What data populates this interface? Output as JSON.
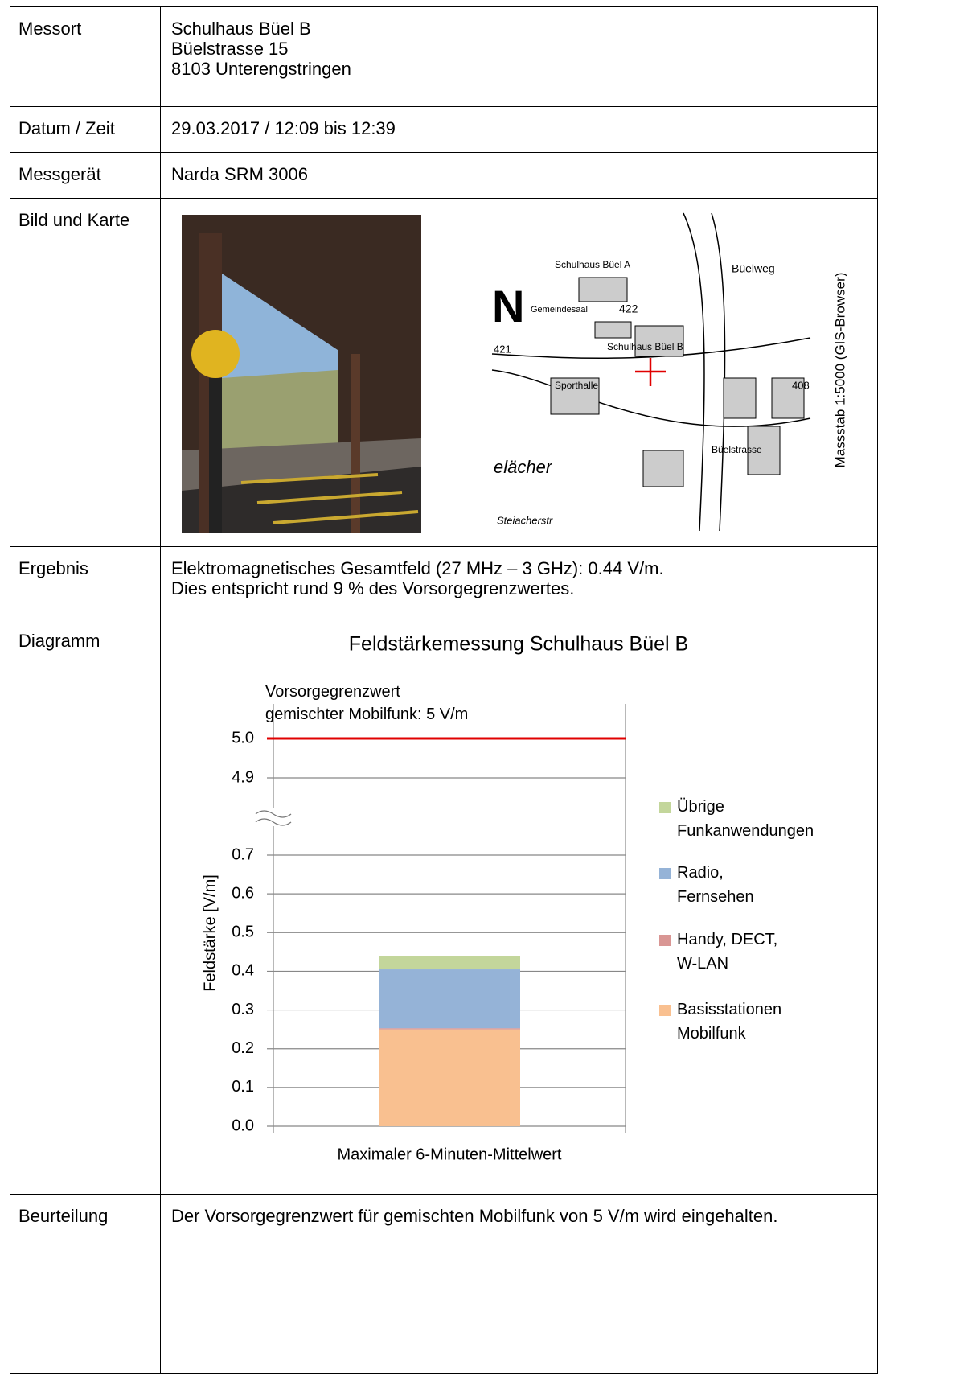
{
  "table": {
    "rows": [
      {
        "label": "Messort",
        "lines": [
          "Schulhaus Büel B",
          "Büelstrasse 15",
          "8103 Unterengstringen"
        ]
      },
      {
        "label": "Datum / Zeit",
        "lines": [
          "29.03.2017 / 12:09 bis 12:39"
        ]
      },
      {
        "label": "Messgerät",
        "lines": [
          "Narda SRM 3006"
        ]
      },
      {
        "label": "Bild und Karte",
        "map": {
          "north": "N",
          "labels": [
            "Schulhaus Büel A",
            "Schulhaus Büel B",
            "Gemeindesaal",
            "Sporthalle",
            "Büelweg",
            "Büelstrasse",
            "elächer",
            "Steiacherstr",
            "421",
            "422",
            "408"
          ],
          "scale_note": "Massstab 1:5000 (GIS-Browser)"
        }
      },
      {
        "label": "Ergebnis",
        "lines": [
          "Elektromagnetisches Gesamtfeld (27 MHz – 3 GHz): 0.44 V/m.",
          "Dies entspricht rund 9 % des Vorsorgegrenzwertes."
        ]
      },
      {
        "label": "Diagramm"
      },
      {
        "label": "Beurteilung",
        "lines": [
          "Der Vorsorgegrenzwert für gemischten Mobilfunk von 5 V/m wird eingehalten."
        ]
      }
    ]
  },
  "chart_data": {
    "type": "stacked_bar",
    "title": "Feldstärkemessung Schulhaus Büel B",
    "categories": [
      "Maximaler 6-Minuten-Mittelwert"
    ],
    "ylabel": "Feldstärke [V/m]",
    "series": [
      {
        "name": "Basisstationen Mobilfunk",
        "color": "#f9c090",
        "values": [
          0.25
        ]
      },
      {
        "name": "Handy, DECT, W-LAN",
        "color": "#d99694",
        "values": [
          0.003
        ]
      },
      {
        "name": "Radio, Fernsehen",
        "color": "#95b3d7",
        "values": [
          0.152
        ]
      },
      {
        "name": "Übrige Funkanwendungen",
        "color": "#c3d69b",
        "values": [
          0.035
        ]
      }
    ],
    "ylim": [
      0,
      5.0
    ],
    "axis_break": [
      0.7,
      4.9
    ],
    "yticks": [
      {
        "value": 0,
        "label": "0.0"
      },
      0.1,
      0.2,
      0.3,
      0.4,
      0.5,
      0.6,
      0.7,
      4.9,
      {
        "value": 5,
        "label": "5.0"
      }
    ],
    "grid": true,
    "reference_line": {
      "value": 5,
      "color": "#e00000",
      "annotation": [
        "Vorsorgegrenzwert",
        "gemischter Mobilfunk: 5 V/m"
      ]
    },
    "legend": "right"
  }
}
